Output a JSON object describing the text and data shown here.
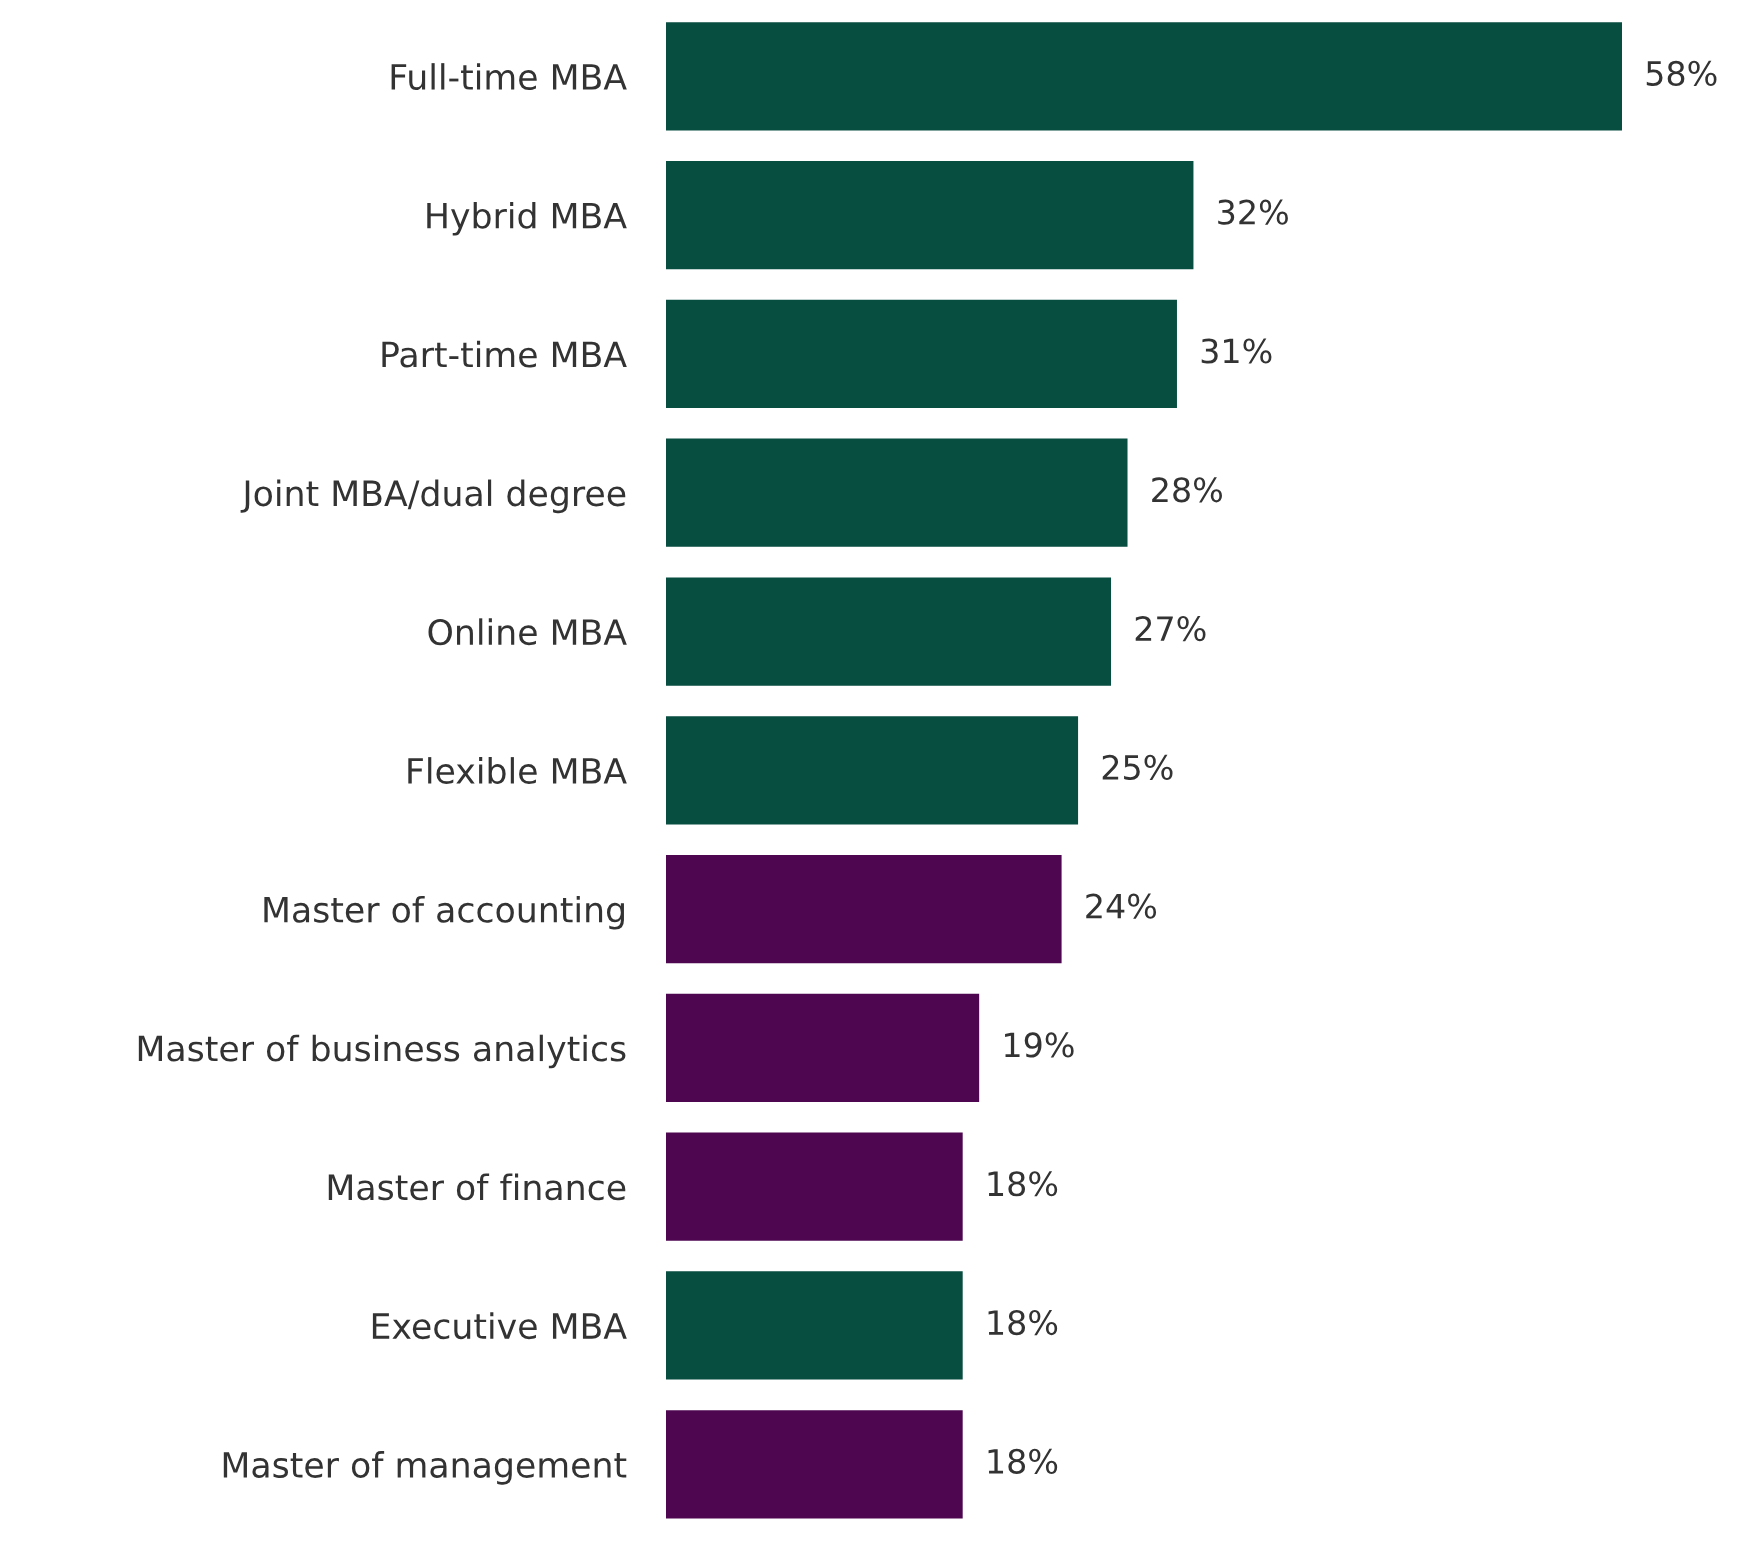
{
  "chart_data": {
    "type": "bar",
    "orientation": "horizontal",
    "categories": [
      "Full-time MBA",
      "Hybrid MBA",
      "Part-time MBA",
      "Joint MBA/dual degree",
      "Online MBA",
      "Flexible MBA",
      "Master of accounting",
      "Master of business analytics",
      "Master of finance",
      "Executive MBA",
      "Master of management"
    ],
    "values": [
      58,
      32,
      31,
      28,
      27,
      25,
      24,
      19,
      18,
      18,
      18
    ],
    "value_labels": [
      "58%",
      "32%",
      "31%",
      "28%",
      "27%",
      "25%",
      "24%",
      "19%",
      "18%",
      "18%",
      "18%"
    ],
    "colors": [
      "#074d40",
      "#074d40",
      "#074d40",
      "#074d40",
      "#074d40",
      "#074d40",
      "#4e0650",
      "#4e0650",
      "#4e0650",
      "#074d40",
      "#4e0650"
    ],
    "grid": false,
    "legend": false
  }
}
